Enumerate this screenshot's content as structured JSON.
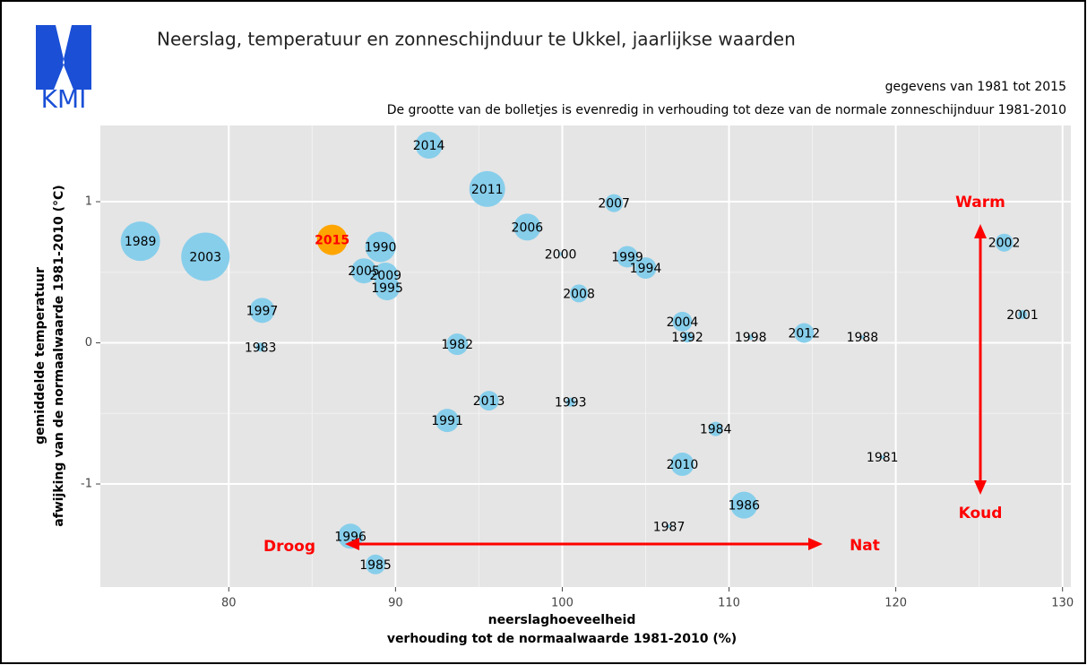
{
  "chart_data": {
    "type": "scatter",
    "logo": "KMI",
    "title": "Neerslag, temperatuur en zonneschijnduur te Ukkel, jaarlijkse waarden",
    "subtitle": [
      "gegevens van 1981 tot 2015",
      "De grootte van de bolletjes is evenredig in verhouding tot deze van de normale zonneschijnduur 1981-2010"
    ],
    "xlabel": [
      "neerslaghoeveelheid",
      "verhouding tot de normaalwaarde 1981-2010 (%)"
    ],
    "ylabel": [
      "gemiddelde temperatuur",
      "afwijking van de normaalwaarde 1981-2010 (°C)"
    ],
    "xlim": [
      72.3,
      130.5
    ],
    "ylim": [
      -1.73,
      1.54
    ],
    "xticks": [
      80,
      90,
      100,
      110,
      120,
      130
    ],
    "yticks": [
      -1,
      0,
      1
    ],
    "grid": true,
    "annotations": [
      "Warm",
      "Koud",
      "Droog",
      "Nat"
    ],
    "labels": [
      "1989",
      "2003",
      "2015",
      "1990",
      "2005",
      "2009",
      "1995",
      "1997",
      "1983",
      "2014",
      "2011",
      "2006",
      "2000",
      "2007",
      "1999",
      "1994",
      "2008",
      "1982",
      "2004",
      "1992",
      "1998",
      "2012",
      "1988",
      "2002",
      "2001",
      "2013",
      "1993",
      "1991",
      "1984",
      "1981",
      "2010",
      "1986",
      "1987",
      "1996",
      "1985"
    ],
    "x": [
      74.7,
      78.6,
      86.2,
      89.1,
      88.1,
      89.4,
      89.5,
      82.0,
      81.9,
      92.0,
      95.5,
      97.9,
      99.9,
      103.1,
      103.9,
      105.0,
      101.0,
      93.7,
      107.2,
      107.5,
      111.3,
      114.5,
      118.0,
      126.5,
      127.6,
      95.6,
      100.5,
      93.1,
      109.2,
      119.2,
      107.2,
      110.9,
      106.4,
      87.3,
      88.8
    ],
    "y": [
      0.72,
      0.61,
      0.73,
      0.68,
      0.51,
      0.48,
      0.39,
      0.23,
      -0.03,
      1.4,
      1.09,
      0.82,
      0.63,
      0.99,
      0.61,
      0.53,
      0.35,
      -0.01,
      0.15,
      0.04,
      0.04,
      0.07,
      0.04,
      0.71,
      0.2,
      -0.41,
      -0.42,
      -0.55,
      -0.61,
      -0.81,
      -0.86,
      -1.15,
      -1.3,
      -1.37,
      -1.57
    ],
    "sizes": [
      22,
      27,
      17,
      17,
      14,
      14,
      14,
      14,
      5,
      15,
      20,
      15,
      2,
      10,
      12,
      12,
      10,
      12,
      11,
      6,
      3,
      11,
      2,
      10,
      5,
      11,
      5,
      13,
      8,
      2,
      13,
      15,
      2,
      14,
      11
    ],
    "colors": [
      "#87ceeb",
      "#87ceeb",
      "#ffa500",
      "#87ceeb",
      "#87ceeb",
      "#87ceeb",
      "#87ceeb",
      "#87ceeb",
      "#87ceeb",
      "#87ceeb",
      "#87ceeb",
      "#87ceeb",
      "#87ceeb",
      "#87ceeb",
      "#87ceeb",
      "#87ceeb",
      "#87ceeb",
      "#87ceeb",
      "#87ceeb",
      "#87ceeb",
      "#87ceeb",
      "#87ceeb",
      "#87ceeb",
      "#87ceeb",
      "#87ceeb",
      "#87ceeb",
      "#87ceeb",
      "#87ceeb",
      "#87ceeb",
      "#87ceeb",
      "#87ceeb",
      "#87ceeb",
      "#87ceeb",
      "#87ceeb",
      "#87ceeb"
    ],
    "label_colors": [
      "#000000",
      "#000000",
      "#ff0000",
      "#000000",
      "#000000",
      "#000000",
      "#000000",
      "#000000",
      "#000000",
      "#000000",
      "#000000",
      "#000000",
      "#000000",
      "#000000",
      "#000000",
      "#000000",
      "#000000",
      "#000000",
      "#000000",
      "#000000",
      "#000000",
      "#000000",
      "#000000",
      "#000000",
      "#000000",
      "#000000",
      "#000000",
      "#000000",
      "#000000",
      "#000000",
      "#000000",
      "#000000",
      "#000000",
      "#000000",
      "#000000"
    ],
    "annotation_color": "#ff0000"
  }
}
